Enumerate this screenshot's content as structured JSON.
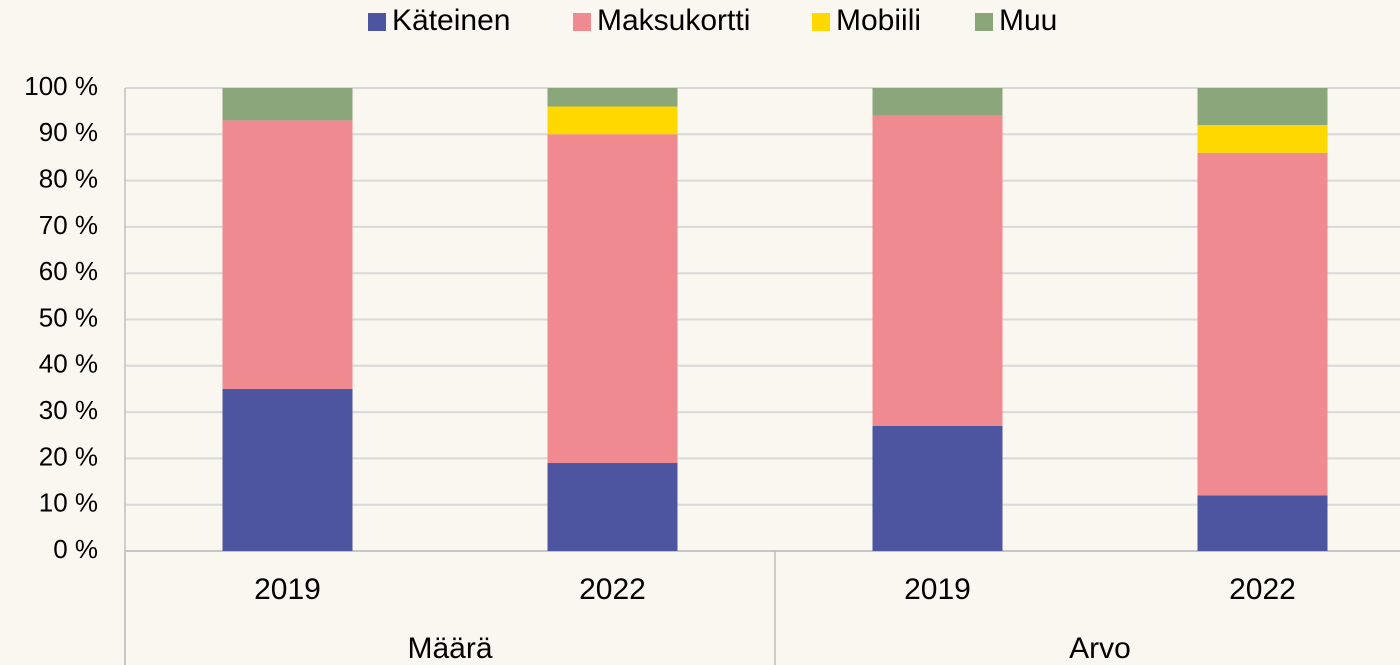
{
  "chart_data": {
    "type": "stacked_bar",
    "categories": [
      "2019",
      "2022",
      "2019",
      "2022"
    ],
    "category_groups": [
      "Määrä",
      "Arvo"
    ],
    "series": [
      {
        "name": "Käteinen",
        "color": "#4e55a0",
        "values": [
          35,
          19,
          27,
          12
        ]
      },
      {
        "name": "Maksukortti",
        "color": "#f08a91",
        "values": [
          58,
          71,
          67,
          74
        ]
      },
      {
        "name": "Mobiili",
        "color": "#ffd800",
        "values": [
          0,
          6,
          0,
          6
        ]
      },
      {
        "name": "Muu",
        "color": "#8aa67a",
        "values": [
          7,
          4,
          6,
          8
        ]
      }
    ],
    "ylim": [
      0,
      100
    ],
    "yticks": [
      {
        "value": 0,
        "label": "0 %"
      },
      {
        "value": 10,
        "label": "10 %"
      },
      {
        "value": 20,
        "label": "20 %"
      },
      {
        "value": 30,
        "label": "30 %"
      },
      {
        "value": 40,
        "label": "40 %"
      },
      {
        "value": 50,
        "label": "50 %"
      },
      {
        "value": 60,
        "label": "60 %"
      },
      {
        "value": 70,
        "label": "70 %"
      },
      {
        "value": 80,
        "label": "80 %"
      },
      {
        "value": 90,
        "label": "90 %"
      },
      {
        "value": 100,
        "label": "100 %"
      }
    ],
    "grid": true,
    "legend": "top"
  }
}
